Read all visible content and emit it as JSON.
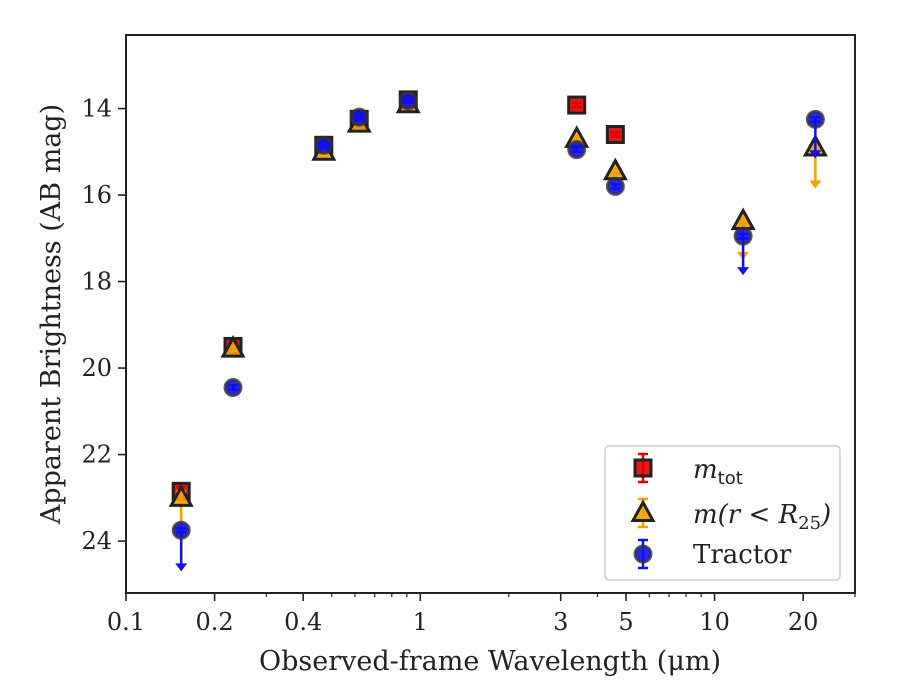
{
  "chart_data": {
    "type": "scatter",
    "xlabel": "Observed-frame Wavelength (μm)",
    "ylabel": "Apparent Brightness (AB mag)",
    "x_scale": "log",
    "xlim": [
      0.1,
      30
    ],
    "ylim": [
      25.2,
      12.3
    ],
    "y_inverted": true,
    "x_ticks": [
      {
        "value": 0.1,
        "label": "0.1"
      },
      {
        "value": 0.2,
        "label": "0.2"
      },
      {
        "value": 0.4,
        "label": "0.4"
      },
      {
        "value": 1,
        "label": "1"
      },
      {
        "value": 3,
        "label": "3"
      },
      {
        "value": 5,
        "label": "5"
      },
      {
        "value": 10,
        "label": "10"
      },
      {
        "value": 20,
        "label": "20"
      }
    ],
    "y_ticks": [
      {
        "value": 14,
        "label": "14"
      },
      {
        "value": 16,
        "label": "16"
      },
      {
        "value": 18,
        "label": "18"
      },
      {
        "value": 20,
        "label": "20"
      },
      {
        "value": 22,
        "label": "22"
      },
      {
        "value": 24,
        "label": "24"
      }
    ],
    "grid": false,
    "legend_position": "bottom-right",
    "series": [
      {
        "name": "m_tot",
        "label_main": "m",
        "label_sub": "tot",
        "marker": "square",
        "color": "#e00000",
        "points": [
          {
            "x": 0.154,
            "y": 22.85,
            "err": 0.1
          },
          {
            "x": 0.231,
            "y": 19.5,
            "err": 0.1
          },
          {
            "x": 0.47,
            "y": 14.85,
            "err": 0.05
          },
          {
            "x": 0.62,
            "y": 14.25,
            "err": 0.05
          },
          {
            "x": 0.91,
            "y": 13.8,
            "err": 0.05
          },
          {
            "x": 3.4,
            "y": 13.92,
            "err": 0.05
          },
          {
            "x": 4.6,
            "y": 14.6,
            "err": 0.05
          }
        ]
      },
      {
        "name": "m(r < R_25)",
        "label_main": "m(r < R",
        "label_sub": "25",
        "label_end": ")",
        "marker": "triangle",
        "color": "#f5a000",
        "points": [
          {
            "x": 0.154,
            "y": 23.0,
            "err": 0.15,
            "upper_limit_to": 23.9
          },
          {
            "x": 0.231,
            "y": 19.55,
            "err": 0.05
          },
          {
            "x": 0.47,
            "y": 15.0,
            "err": 0.05
          },
          {
            "x": 0.62,
            "y": 14.35,
            "err": 0.05
          },
          {
            "x": 0.91,
            "y": 13.9,
            "err": 0.05
          },
          {
            "x": 3.4,
            "y": 14.7,
            "err": 0.05
          },
          {
            "x": 4.6,
            "y": 15.45,
            "err": 0.05
          },
          {
            "x": 12.5,
            "y": 16.6,
            "err": 0.05,
            "upper_limit_to": 17.5
          },
          {
            "x": 22.0,
            "y": 14.9,
            "err": 0.05,
            "upper_limit_to": 15.85
          }
        ]
      },
      {
        "name": "Tractor",
        "label_main": "Tractor",
        "marker": "circle",
        "color": "#1010ee",
        "points": [
          {
            "x": 0.154,
            "y": 23.75,
            "err": 0.05,
            "upper_limit_to": 24.7
          },
          {
            "x": 0.231,
            "y": 20.45,
            "err": 0.05
          },
          {
            "x": 0.47,
            "y": 14.85,
            "err": 0.05
          },
          {
            "x": 0.62,
            "y": 14.2,
            "err": 0.05
          },
          {
            "x": 0.91,
            "y": 13.82,
            "err": 0.05
          },
          {
            "x": 3.4,
            "y": 14.95,
            "err": 0.05
          },
          {
            "x": 4.6,
            "y": 15.8,
            "err": 0.05
          },
          {
            "x": 12.5,
            "y": 16.95,
            "err": 0.05,
            "upper_limit_to": 17.85
          },
          {
            "x": 22.0,
            "y": 14.25,
            "err": 0.05,
            "upper_limit_to": 15.15
          }
        ]
      }
    ]
  }
}
